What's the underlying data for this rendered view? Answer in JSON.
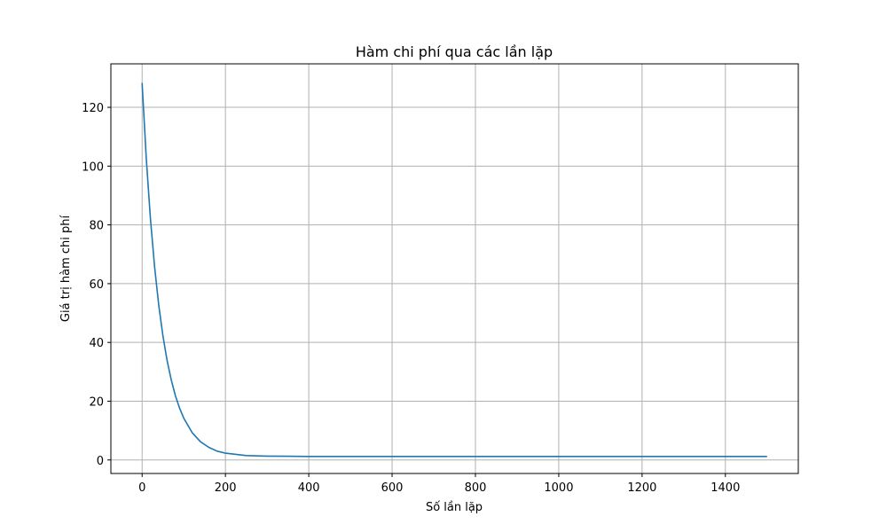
{
  "chart_data": {
    "type": "line",
    "title": "Hàm chi phí qua các lần lặp",
    "xlabel": "Số lần lặp",
    "ylabel": "Giá trị hàm chi phí",
    "xlim": [
      -75,
      1575
    ],
    "ylim": [
      -4.6,
      134.8
    ],
    "xticks": [
      0,
      200,
      400,
      600,
      800,
      1000,
      1200,
      1400
    ],
    "yticks": [
      0,
      20,
      40,
      60,
      80,
      100,
      120
    ],
    "grid": true,
    "line_color": "#1f77b4",
    "series": [
      {
        "x": [
          0,
          10,
          20,
          30,
          40,
          50,
          60,
          70,
          80,
          90,
          100,
          120,
          140,
          160,
          180,
          200,
          250,
          300,
          350,
          400,
          500,
          600,
          800,
          1000,
          1200,
          1400,
          1500
        ],
        "values": [
          128.3,
          102.7,
          82.1,
          65.7,
          52.6,
          42.2,
          33.8,
          27.2,
          21.8,
          17.6,
          14.2,
          9.3,
          6.2,
          4.3,
          3.0,
          2.3,
          1.5,
          1.3,
          1.25,
          1.2,
          1.2,
          1.2,
          1.2,
          1.2,
          1.2,
          1.2,
          1.2
        ]
      }
    ]
  }
}
